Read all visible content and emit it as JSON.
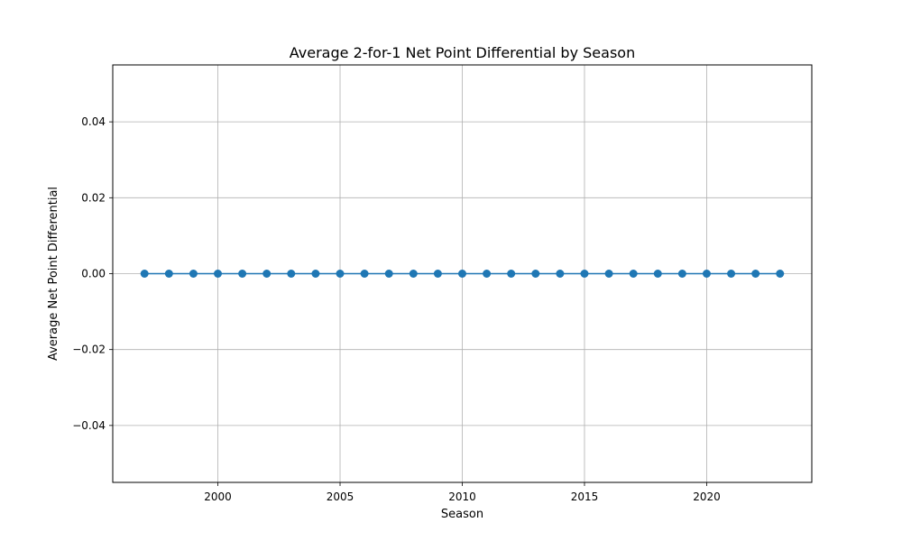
{
  "chart_data": {
    "type": "line",
    "title": "Average 2-for-1 Net Point Differential by Season",
    "xlabel": "Season",
    "ylabel": "Average Net Point Differential",
    "xlim": [
      1995.7,
      2024.3
    ],
    "ylim": [
      -0.055,
      0.055
    ],
    "x_ticks": [
      2000,
      2005,
      2010,
      2015,
      2020
    ],
    "y_ticks": [
      -0.04,
      -0.02,
      0.0,
      0.02,
      0.04
    ],
    "y_tick_labels": [
      "−0.04",
      "−0.02",
      "0.00",
      "0.02",
      "0.04"
    ],
    "grid": true,
    "series": [
      {
        "color": "#1f77b4",
        "marker": "circle",
        "x": [
          1997,
          1998,
          1999,
          2000,
          2001,
          2002,
          2003,
          2004,
          2005,
          2006,
          2007,
          2008,
          2009,
          2010,
          2011,
          2012,
          2013,
          2014,
          2015,
          2016,
          2017,
          2018,
          2019,
          2020,
          2021,
          2022,
          2023
        ],
        "values": [
          0,
          0,
          0,
          0,
          0,
          0,
          0,
          0,
          0,
          0,
          0,
          0,
          0,
          0,
          0,
          0,
          0,
          0,
          0,
          0,
          0,
          0,
          0,
          0,
          0,
          0,
          0
        ]
      }
    ]
  }
}
